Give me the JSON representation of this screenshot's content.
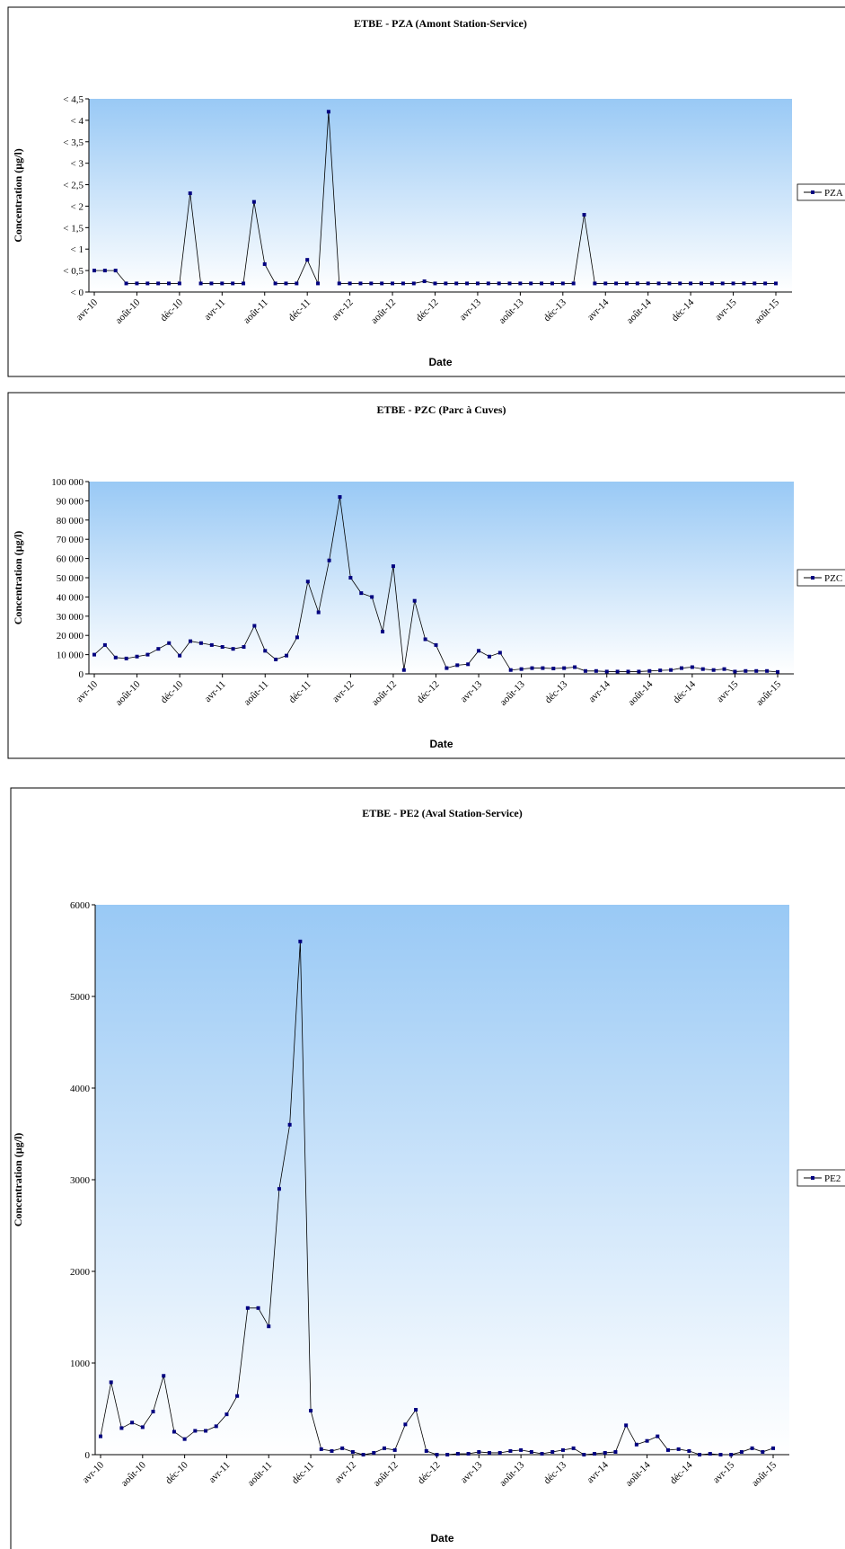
{
  "chart_data": [
    {
      "type": "line",
      "title": "ETBE - PZA (Amont Station-Service)",
      "x_label": "Date",
      "y_label": "Concentration (µg/l)",
      "categories": [
        "avr-10",
        null,
        null,
        null,
        "août-10",
        null,
        null,
        null,
        "déc-10",
        null,
        null,
        null,
        "avr-11",
        null,
        null,
        null,
        "août-11",
        null,
        null,
        null,
        "déc-11",
        null,
        null,
        null,
        "avr-12",
        null,
        null,
        null,
        "août-12",
        null,
        null,
        null,
        "déc-12",
        null,
        null,
        null,
        "avr-13",
        null,
        null,
        null,
        "août-13",
        null,
        null,
        null,
        "déc-13",
        null,
        null,
        null,
        "avr-14",
        null,
        null,
        null,
        "août-14",
        null,
        null,
        null,
        "déc-14",
        null,
        null,
        null,
        "avr-15",
        null,
        null,
        null,
        "août-15"
      ],
      "series": [
        {
          "name": "PZA",
          "color": "#000080",
          "values": [
            0.5,
            0.5,
            0.5,
            0.2,
            0.2,
            0.2,
            0.2,
            0.2,
            0.2,
            2.3,
            0.2,
            0.2,
            0.2,
            0.2,
            0.2,
            2.1,
            0.65,
            0.2,
            0.2,
            0.2,
            0.75,
            0.2,
            4.2,
            0.2,
            0.2,
            0.2,
            0.2,
            0.2,
            0.2,
            0.2,
            0.2,
            0.25,
            0.2,
            0.2,
            0.2,
            0.2,
            0.2,
            0.2,
            0.2,
            0.2,
            0.2,
            0.2,
            0.2,
            0.2,
            0.2,
            0.2,
            1.8,
            0.2,
            0.2,
            0.2,
            0.2,
            0.2,
            0.2,
            0.2,
            0.2,
            0.2,
            0.2,
            0.2,
            0.2,
            0.2,
            0.2,
            0.2,
            0.2,
            0.2,
            0.2
          ]
        }
      ],
      "ylim": [
        0,
        4.5
      ],
      "yticks": [
        {
          "value": 0,
          "label": "< 0"
        },
        {
          "value": 0.5,
          "label": "< 0,5"
        },
        {
          "value": 1,
          "label": "< 1"
        },
        {
          "value": 1.5,
          "label": "< 1,5"
        },
        {
          "value": 2,
          "label": "< 2"
        },
        {
          "value": 2.5,
          "label": "< 2,5"
        },
        {
          "value": 3,
          "label": "< 3"
        },
        {
          "value": 3.5,
          "label": "< 3,5"
        },
        {
          "value": 4,
          "label": "< 4"
        },
        {
          "value": 4.5,
          "label": "< 4,5"
        }
      ]
    },
    {
      "type": "line",
      "title": "ETBE - PZC (Parc à Cuves)",
      "x_label": "Date",
      "y_label": "Concentration (µg/l)",
      "categories": [
        "avr-10",
        null,
        null,
        null,
        "août-10",
        null,
        null,
        null,
        "déc-10",
        null,
        null,
        null,
        "avr-11",
        null,
        null,
        null,
        "août-11",
        null,
        null,
        null,
        "déc-11",
        null,
        null,
        null,
        "avr-12",
        null,
        null,
        null,
        "août-12",
        null,
        null,
        null,
        "déc-12",
        null,
        null,
        null,
        "avr-13",
        null,
        null,
        null,
        "août-13",
        null,
        null,
        null,
        "déc-13",
        null,
        null,
        null,
        "avr-14",
        null,
        null,
        null,
        "août-14",
        null,
        null,
        null,
        "déc-14",
        null,
        null,
        null,
        "avr-15",
        null,
        null,
        null,
        "août-15"
      ],
      "series": [
        {
          "name": "PZC",
          "color": "#000080",
          "values": [
            10000,
            15000,
            8500,
            8000,
            9000,
            10000,
            13000,
            16000,
            9500,
            17000,
            16000,
            15000,
            14000,
            13000,
            14000,
            25000,
            12000,
            7500,
            9500,
            19000,
            48000,
            32000,
            59000,
            92000,
            50000,
            42000,
            40000,
            22000,
            56000,
            2000,
            38000,
            18000,
            15000,
            3000,
            4500,
            5000,
            12000,
            9000,
            11000,
            2000,
            2500,
            3000,
            3000,
            2800,
            3000,
            3500,
            1500,
            1500,
            1200,
            1200,
            1200,
            1200,
            1500,
            1800,
            2000,
            3000,
            3500,
            2500,
            2000,
            2500,
            1200,
            1500,
            1500,
            1500,
            1000
          ]
        }
      ],
      "ylim": [
        0,
        100000
      ],
      "yticks": [
        0,
        {
          "value": 10000,
          "label": "10 000"
        },
        {
          "value": 20000,
          "label": "20 000"
        },
        {
          "value": 30000,
          "label": "30 000"
        },
        {
          "value": 40000,
          "label": "40 000"
        },
        {
          "value": 50000,
          "label": "50 000"
        },
        {
          "value": 60000,
          "label": "60 000"
        },
        {
          "value": 70000,
          "label": "70 000"
        },
        {
          "value": 80000,
          "label": "80 000"
        },
        {
          "value": 90000,
          "label": "90 000"
        },
        {
          "value": 100000,
          "label": "100 000"
        }
      ]
    },
    {
      "type": "line",
      "title": "ETBE - PE2 (Aval Station-Service)",
      "x_label": "Date",
      "y_label": "Concentration (µg/l)",
      "categories": [
        "avr-10",
        null,
        null,
        null,
        "août-10",
        null,
        null,
        null,
        "déc-10",
        null,
        null,
        null,
        "avr-11",
        null,
        null,
        null,
        "août-11",
        null,
        null,
        null,
        "déc-11",
        null,
        null,
        null,
        "avr-12",
        null,
        null,
        null,
        "août-12",
        null,
        null,
        null,
        "déc-12",
        null,
        null,
        null,
        "avr-13",
        null,
        null,
        null,
        "août-13",
        null,
        null,
        null,
        "déc-13",
        null,
        null,
        null,
        "avr-14",
        null,
        null,
        null,
        "août-14",
        null,
        null,
        null,
        "déc-14",
        null,
        null,
        null,
        "avr-15",
        null,
        null,
        null,
        "août-15"
      ],
      "series": [
        {
          "name": "PE2",
          "color": "#000080",
          "values": [
            200,
            790,
            290,
            350,
            300,
            470,
            860,
            250,
            170,
            260,
            260,
            310,
            440,
            640,
            1600,
            1600,
            1400,
            2900,
            3600,
            5600,
            480,
            60,
            40,
            70,
            30,
            0,
            20,
            70,
            50,
            330,
            490,
            40,
            0,
            0,
            10,
            10,
            30,
            20,
            20,
            40,
            50,
            30,
            10,
            30,
            50,
            70,
            0,
            10,
            20,
            30,
            320,
            110,
            150,
            200,
            50,
            60,
            40,
            0,
            10,
            0,
            0,
            30,
            70,
            30,
            70
          ]
        }
      ],
      "ylim": [
        0,
        6000
      ],
      "yticks": [
        0,
        1000,
        2000,
        3000,
        4000,
        5000,
        6000
      ]
    }
  ]
}
